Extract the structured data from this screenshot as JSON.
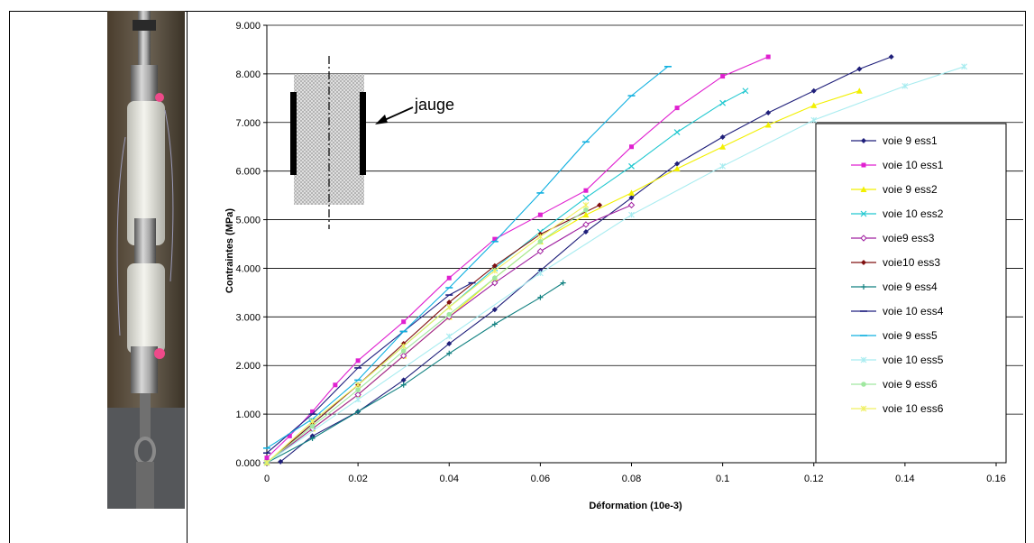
{
  "chart_data": {
    "type": "line",
    "title": "",
    "xlabel": "Déformation (10e-3)",
    "ylabel": "Contraintes (MPa)",
    "xlim": [
      0,
      0.16
    ],
    "ylim": [
      0,
      9
    ],
    "x_ticks": [
      "0",
      "0.02",
      "0.04",
      "0.06",
      "0.08",
      "0.1",
      "0.12",
      "0.14",
      "0.16"
    ],
    "y_ticks": [
      "0.000",
      "1.000",
      "2.000",
      "3.000",
      "4.000",
      "5.000",
      "6.000",
      "7.000",
      "8.000",
      "9.000"
    ],
    "grid": "horizontal",
    "legend_position": "right",
    "annotation": "jauge",
    "series": [
      {
        "name": "voie 9 ess1",
        "color": "#1f1f7a",
        "marker": "diamond",
        "x": [
          0.003,
          0.01,
          0.02,
          0.03,
          0.04,
          0.05,
          0.06,
          0.07,
          0.08,
          0.09,
          0.1,
          0.11,
          0.12,
          0.13,
          0.137
        ],
        "y": [
          0.02,
          0.55,
          1.05,
          1.7,
          2.45,
          3.15,
          3.95,
          4.75,
          5.45,
          6.15,
          6.7,
          7.2,
          7.65,
          8.1,
          8.35
        ]
      },
      {
        "name": "voie 10 ess1",
        "color": "#e020d0",
        "marker": "square",
        "x": [
          0,
          0.005,
          0.01,
          0.015,
          0.02,
          0.03,
          0.04,
          0.05,
          0.06,
          0.07,
          0.08,
          0.09,
          0.1,
          0.11
        ],
        "y": [
          0.1,
          0.55,
          1.05,
          1.6,
          2.1,
          2.9,
          3.8,
          4.6,
          5.1,
          5.6,
          6.5,
          7.3,
          7.95,
          8.35
        ]
      },
      {
        "name": "voie 9 ess2",
        "color": "#f2f000",
        "marker": "triangle",
        "x": [
          0,
          0.01,
          0.02,
          0.03,
          0.04,
          0.05,
          0.06,
          0.07,
          0.08,
          0.09,
          0.1,
          0.11,
          0.12,
          0.13
        ],
        "y": [
          0,
          0.7,
          1.4,
          2.2,
          3.0,
          3.8,
          4.55,
          5.1,
          5.55,
          6.05,
          6.5,
          6.95,
          7.35,
          7.65
        ]
      },
      {
        "name": "voie 10 ess2",
        "color": "#20c8d0",
        "marker": "x",
        "x": [
          0,
          0.01,
          0.02,
          0.03,
          0.04,
          0.05,
          0.06,
          0.07,
          0.08,
          0.09,
          0.1,
          0.105
        ],
        "y": [
          0,
          0.8,
          1.6,
          2.4,
          3.2,
          4.0,
          4.75,
          5.45,
          6.1,
          6.8,
          7.4,
          7.65
        ]
      },
      {
        "name": "voie9 ess3",
        "color": "#a020a0",
        "marker": "open-diamond",
        "x": [
          0,
          0.01,
          0.02,
          0.03,
          0.04,
          0.05,
          0.06,
          0.07,
          0.08
        ],
        "y": [
          0,
          0.7,
          1.4,
          2.2,
          3.0,
          3.7,
          4.35,
          4.9,
          5.3
        ]
      },
      {
        "name": "voie10 ess3",
        "color": "#801010",
        "marker": "diamond",
        "x": [
          0,
          0.01,
          0.02,
          0.03,
          0.04,
          0.05,
          0.06,
          0.073
        ],
        "y": [
          0,
          0.8,
          1.6,
          2.45,
          3.3,
          4.05,
          4.7,
          5.3
        ]
      },
      {
        "name": "voie 9 ess4",
        "color": "#108080",
        "marker": "plus",
        "x": [
          0,
          0.01,
          0.02,
          0.03,
          0.04,
          0.05,
          0.06,
          0.065
        ],
        "y": [
          0,
          0.5,
          1.05,
          1.6,
          2.25,
          2.85,
          3.4,
          3.7
        ]
      },
      {
        "name": "voie 10 ess4",
        "color": "#202080",
        "marker": "dash",
        "x": [
          0,
          0.01,
          0.02,
          0.03,
          0.04,
          0.045
        ],
        "y": [
          0.2,
          1.0,
          1.95,
          2.7,
          3.45,
          3.7
        ]
      },
      {
        "name": "voie 9 ess5",
        "color": "#10b0e0",
        "marker": "dash",
        "x": [
          0,
          0.01,
          0.02,
          0.03,
          0.04,
          0.05,
          0.06,
          0.07,
          0.08,
          0.088
        ],
        "y": [
          0.3,
          0.9,
          1.7,
          2.7,
          3.6,
          4.55,
          5.55,
          6.6,
          7.55,
          8.15
        ]
      },
      {
        "name": "voie 10 ess5",
        "color": "#a8ecf0",
        "marker": "star",
        "x": [
          0,
          0.02,
          0.04,
          0.06,
          0.08,
          0.1,
          0.12,
          0.14,
          0.153
        ],
        "y": [
          0,
          1.3,
          2.6,
          3.9,
          5.1,
          6.1,
          7.05,
          7.75,
          8.15
        ]
      },
      {
        "name": "voie 9 ess6",
        "color": "#a0e8a0",
        "marker": "circle",
        "x": [
          0,
          0.01,
          0.02,
          0.03,
          0.04,
          0.05,
          0.06,
          0.07
        ],
        "y": [
          0,
          0.75,
          1.5,
          2.3,
          3.05,
          3.8,
          4.55,
          5.2
        ]
      },
      {
        "name": "voie 10 ess6",
        "color": "#f0f060",
        "marker": "asterisk",
        "x": [
          0,
          0.01,
          0.02,
          0.03,
          0.04,
          0.05,
          0.06,
          0.07
        ],
        "y": [
          0,
          0.85,
          1.6,
          2.4,
          3.2,
          3.95,
          4.65,
          5.3
        ]
      }
    ]
  }
}
